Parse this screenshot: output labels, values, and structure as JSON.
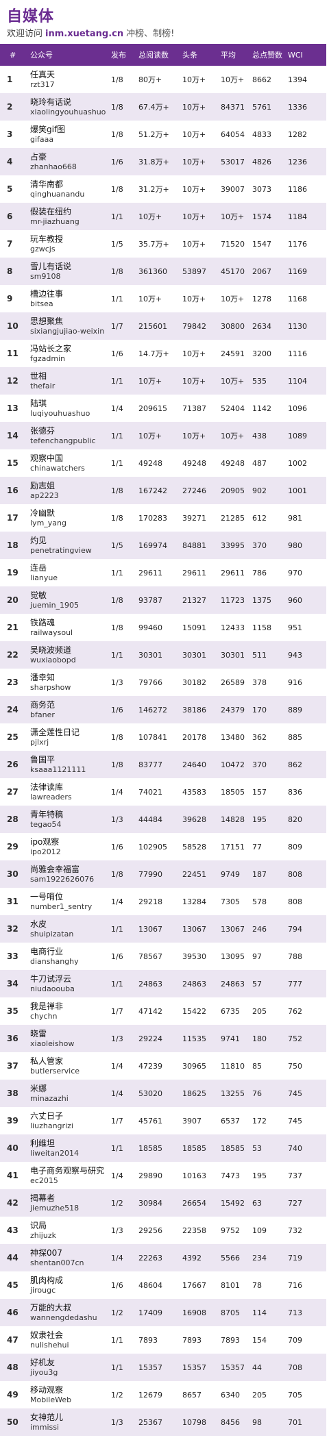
{
  "header": {
    "title": "自媒体",
    "welcome": "欢迎访问",
    "url": "inm.xuetang.cn",
    "slogan": "冲榜、制榜!"
  },
  "columns": [
    "#",
    "公众号",
    "发布",
    "总阅读数",
    "头条",
    "平均",
    "总点赞数",
    "WCI"
  ],
  "rows": [
    {
      "rank": "1",
      "name": "任真天",
      "id": "rzt317",
      "pub": "1/8",
      "total": "80万+",
      "top": "10万+",
      "avg": "10万+",
      "likes": "8662",
      "wci": "1394"
    },
    {
      "rank": "2",
      "name": "晓玲有话说",
      "id": "xiaolingyouhuashuo",
      "pub": "1/8",
      "total": "67.4万+",
      "top": "10万+",
      "avg": "84371",
      "likes": "5761",
      "wci": "1336"
    },
    {
      "rank": "3",
      "name": "爆笑gif图",
      "id": "gifaaa",
      "pub": "1/8",
      "total": "51.2万+",
      "top": "10万+",
      "avg": "64054",
      "likes": "4833",
      "wci": "1282"
    },
    {
      "rank": "4",
      "name": "占豪",
      "id": "zhanhao668",
      "pub": "1/6",
      "total": "31.8万+",
      "top": "10万+",
      "avg": "53017",
      "likes": "4826",
      "wci": "1236"
    },
    {
      "rank": "5",
      "name": "清华南都",
      "id": "qinghuanandu",
      "pub": "1/8",
      "total": "31.2万+",
      "top": "10万+",
      "avg": "39007",
      "likes": "3073",
      "wci": "1186"
    },
    {
      "rank": "6",
      "name": "假装在纽约",
      "id": "mr-jiazhuang",
      "pub": "1/1",
      "total": "10万+",
      "top": "10万+",
      "avg": "10万+",
      "likes": "1574",
      "wci": "1184"
    },
    {
      "rank": "7",
      "name": "玩车教授",
      "id": "gzwcjs",
      "pub": "1/5",
      "total": "35.7万+",
      "top": "10万+",
      "avg": "71520",
      "likes": "1547",
      "wci": "1176"
    },
    {
      "rank": "8",
      "name": "雪儿有话说",
      "id": "sm9108",
      "pub": "1/8",
      "total": "361360",
      "top": "53897",
      "avg": "45170",
      "likes": "2067",
      "wci": "1169"
    },
    {
      "rank": "9",
      "name": "槽边往事",
      "id": "bitsea",
      "pub": "1/1",
      "total": "10万+",
      "top": "10万+",
      "avg": "10万+",
      "likes": "1278",
      "wci": "1168"
    },
    {
      "rank": "10",
      "name": "思想聚焦",
      "id": "sixiangjujiao-weixin",
      "pub": "1/7",
      "total": "215601",
      "top": "79842",
      "avg": "30800",
      "likes": "2634",
      "wci": "1130"
    },
    {
      "rank": "11",
      "name": "冯站长之家",
      "id": "fgzadmin",
      "pub": "1/6",
      "total": "14.7万+",
      "top": "10万+",
      "avg": "24591",
      "likes": "3200",
      "wci": "1116"
    },
    {
      "rank": "12",
      "name": "世相",
      "id": "thefair",
      "pub": "1/1",
      "total": "10万+",
      "top": "10万+",
      "avg": "10万+",
      "likes": "535",
      "wci": "1104"
    },
    {
      "rank": "13",
      "name": "陆琪",
      "id": "luqiyouhuashuo",
      "pub": "1/4",
      "total": "209615",
      "top": "71387",
      "avg": "52404",
      "likes": "1142",
      "wci": "1096"
    },
    {
      "rank": "14",
      "name": "张德芬",
      "id": "tefenchangpublic",
      "pub": "1/1",
      "total": "10万+",
      "top": "10万+",
      "avg": "10万+",
      "likes": "438",
      "wci": "1089"
    },
    {
      "rank": "15",
      "name": "观察中国",
      "id": "chinawatchers",
      "pub": "1/1",
      "total": "49248",
      "top": "49248",
      "avg": "49248",
      "likes": "487",
      "wci": "1002"
    },
    {
      "rank": "16",
      "name": "励志姐",
      "id": "ap2223",
      "pub": "1/8",
      "total": "167242",
      "top": "27246",
      "avg": "20905",
      "likes": "902",
      "wci": "1001"
    },
    {
      "rank": "17",
      "name": "冷幽默",
      "id": "lym_yang",
      "pub": "1/8",
      "total": "170283",
      "top": "39271",
      "avg": "21285",
      "likes": "612",
      "wci": "981"
    },
    {
      "rank": "18",
      "name": "灼见",
      "id": "penetratingview",
      "pub": "1/5",
      "total": "169974",
      "top": "84881",
      "avg": "33995",
      "likes": "370",
      "wci": "980"
    },
    {
      "rank": "19",
      "name": "连岳",
      "id": "lianyue",
      "pub": "1/1",
      "total": "29611",
      "top": "29611",
      "avg": "29611",
      "likes": "786",
      "wci": "970"
    },
    {
      "rank": "20",
      "name": "觉敏",
      "id": "juemin_1905",
      "pub": "1/8",
      "total": "93787",
      "top": "21327",
      "avg": "11723",
      "likes": "1375",
      "wci": "960"
    },
    {
      "rank": "21",
      "name": "铁路魂",
      "id": "railwaysoul",
      "pub": "1/8",
      "total": "99460",
      "top": "15091",
      "avg": "12433",
      "likes": "1158",
      "wci": "951"
    },
    {
      "rank": "22",
      "name": "吴晓波频道",
      "id": "wuxiaobopd",
      "pub": "1/1",
      "total": "30301",
      "top": "30301",
      "avg": "30301",
      "likes": "511",
      "wci": "943"
    },
    {
      "rank": "23",
      "name": "潘幸知",
      "id": "sharpshow",
      "pub": "1/3",
      "total": "79766",
      "top": "30182",
      "avg": "26589",
      "likes": "378",
      "wci": "916"
    },
    {
      "rank": "24",
      "name": "商务范",
      "id": "bfaner",
      "pub": "1/6",
      "total": "146272",
      "top": "38186",
      "avg": "24379",
      "likes": "170",
      "wci": "889"
    },
    {
      "rank": "25",
      "name": "潇全莲性日记",
      "id": "pjlxrj",
      "pub": "1/8",
      "total": "107841",
      "top": "20178",
      "avg": "13480",
      "likes": "362",
      "wci": "885"
    },
    {
      "rank": "26",
      "name": "鲁国平",
      "id": "ksaaa1121111",
      "pub": "1/8",
      "total": "83777",
      "top": "24640",
      "avg": "10472",
      "likes": "370",
      "wci": "862"
    },
    {
      "rank": "27",
      "name": "法律读库",
      "id": "lawreaders",
      "pub": "1/4",
      "total": "74021",
      "top": "43583",
      "avg": "18505",
      "likes": "157",
      "wci": "836"
    },
    {
      "rank": "28",
      "name": "青年特稿",
      "id": "tegao54",
      "pub": "1/3",
      "total": "44484",
      "top": "39628",
      "avg": "14828",
      "likes": "195",
      "wci": "820"
    },
    {
      "rank": "29",
      "name": "ipo观察",
      "id": "ipo2012",
      "pub": "1/6",
      "total": "102905",
      "top": "58528",
      "avg": "17151",
      "likes": "77",
      "wci": "809"
    },
    {
      "rank": "30",
      "name": "尚雅会幸福富",
      "id": "sam1922626076",
      "pub": "1/8",
      "total": "77990",
      "top": "22451",
      "avg": "9749",
      "likes": "187",
      "wci": "808"
    },
    {
      "rank": "31",
      "name": "一号哨位",
      "id": "number1_sentry",
      "pub": "1/4",
      "total": "29218",
      "top": "13284",
      "avg": "7305",
      "likes": "578",
      "wci": "808"
    },
    {
      "rank": "32",
      "name": "水皮",
      "id": "shuipizatan",
      "pub": "1/1",
      "total": "13067",
      "top": "13067",
      "avg": "13067",
      "likes": "246",
      "wci": "794"
    },
    {
      "rank": "33",
      "name": "电商行业",
      "id": "dianshanghy",
      "pub": "1/6",
      "total": "78567",
      "top": "39530",
      "avg": "13095",
      "likes": "97",
      "wci": "788"
    },
    {
      "rank": "34",
      "name": "牛刀试浮云",
      "id": "niudaoouba",
      "pub": "1/1",
      "total": "24863",
      "top": "24863",
      "avg": "24863",
      "likes": "57",
      "wci": "777"
    },
    {
      "rank": "35",
      "name": "我是禅非",
      "id": "chychn",
      "pub": "1/7",
      "total": "47142",
      "top": "15422",
      "avg": "6735",
      "likes": "205",
      "wci": "762"
    },
    {
      "rank": "36",
      "name": "晓雷",
      "id": "xiaoleishow",
      "pub": "1/3",
      "total": "29224",
      "top": "11535",
      "avg": "9741",
      "likes": "180",
      "wci": "752"
    },
    {
      "rank": "37",
      "name": "私人管家",
      "id": "butlerservice",
      "pub": "1/4",
      "total": "47239",
      "top": "30965",
      "avg": "11810",
      "likes": "85",
      "wci": "750"
    },
    {
      "rank": "38",
      "name": "米娜",
      "id": "minazazhi",
      "pub": "1/4",
      "total": "53020",
      "top": "18625",
      "avg": "13255",
      "likes": "76",
      "wci": "745"
    },
    {
      "rank": "39",
      "name": "六丈日子",
      "id": "liuzhangrizi",
      "pub": "1/7",
      "total": "45761",
      "top": "3907",
      "avg": "6537",
      "likes": "172",
      "wci": "745"
    },
    {
      "rank": "40",
      "name": "利维坦",
      "id": "liweitan2014",
      "pub": "1/1",
      "total": "18585",
      "top": "18585",
      "avg": "18585",
      "likes": "53",
      "wci": "740"
    },
    {
      "rank": "41",
      "name": "电子商务观察与研究",
      "id": "ec2015",
      "pub": "1/4",
      "total": "29890",
      "top": "10163",
      "avg": "7473",
      "likes": "195",
      "wci": "737"
    },
    {
      "rank": "42",
      "name": "揭幕者",
      "id": "jiemuzhe518",
      "pub": "1/2",
      "total": "30984",
      "top": "26654",
      "avg": "15492",
      "likes": "63",
      "wci": "727"
    },
    {
      "rank": "43",
      "name": "识局",
      "id": "zhijuzk",
      "pub": "1/3",
      "total": "29256",
      "top": "22358",
      "avg": "9752",
      "likes": "109",
      "wci": "732"
    },
    {
      "rank": "44",
      "name": "神探007",
      "id": "shentan007cn",
      "pub": "1/4",
      "total": "22263",
      "top": "4392",
      "avg": "5566",
      "likes": "234",
      "wci": "719"
    },
    {
      "rank": "45",
      "name": "肌肉构成",
      "id": "jirougc",
      "pub": "1/6",
      "total": "48604",
      "top": "17667",
      "avg": "8101",
      "likes": "78",
      "wci": "716"
    },
    {
      "rank": "46",
      "name": "万能的大叔",
      "id": "wannengdedashu",
      "pub": "1/2",
      "total": "17409",
      "top": "16908",
      "avg": "8705",
      "likes": "114",
      "wci": "713"
    },
    {
      "rank": "47",
      "name": "奴隶社会",
      "id": "nulishehui",
      "pub": "1/1",
      "total": "7893",
      "top": "7893",
      "avg": "7893",
      "likes": "154",
      "wci": "709"
    },
    {
      "rank": "48",
      "name": "好机友",
      "id": "jiyou3g",
      "pub": "1/1",
      "total": "15357",
      "top": "15357",
      "avg": "15357",
      "likes": "44",
      "wci": "708"
    },
    {
      "rank": "49",
      "name": "移动观察",
      "id": "MobileWeb",
      "pub": "1/2",
      "total": "12679",
      "top": "8657",
      "avg": "6340",
      "likes": "205",
      "wci": "705"
    },
    {
      "rank": "50",
      "name": "女神范儿",
      "id": "immissi",
      "pub": "1/3",
      "total": "25367",
      "top": "10798",
      "avg": "8456",
      "likes": "98",
      "wci": "701"
    }
  ]
}
